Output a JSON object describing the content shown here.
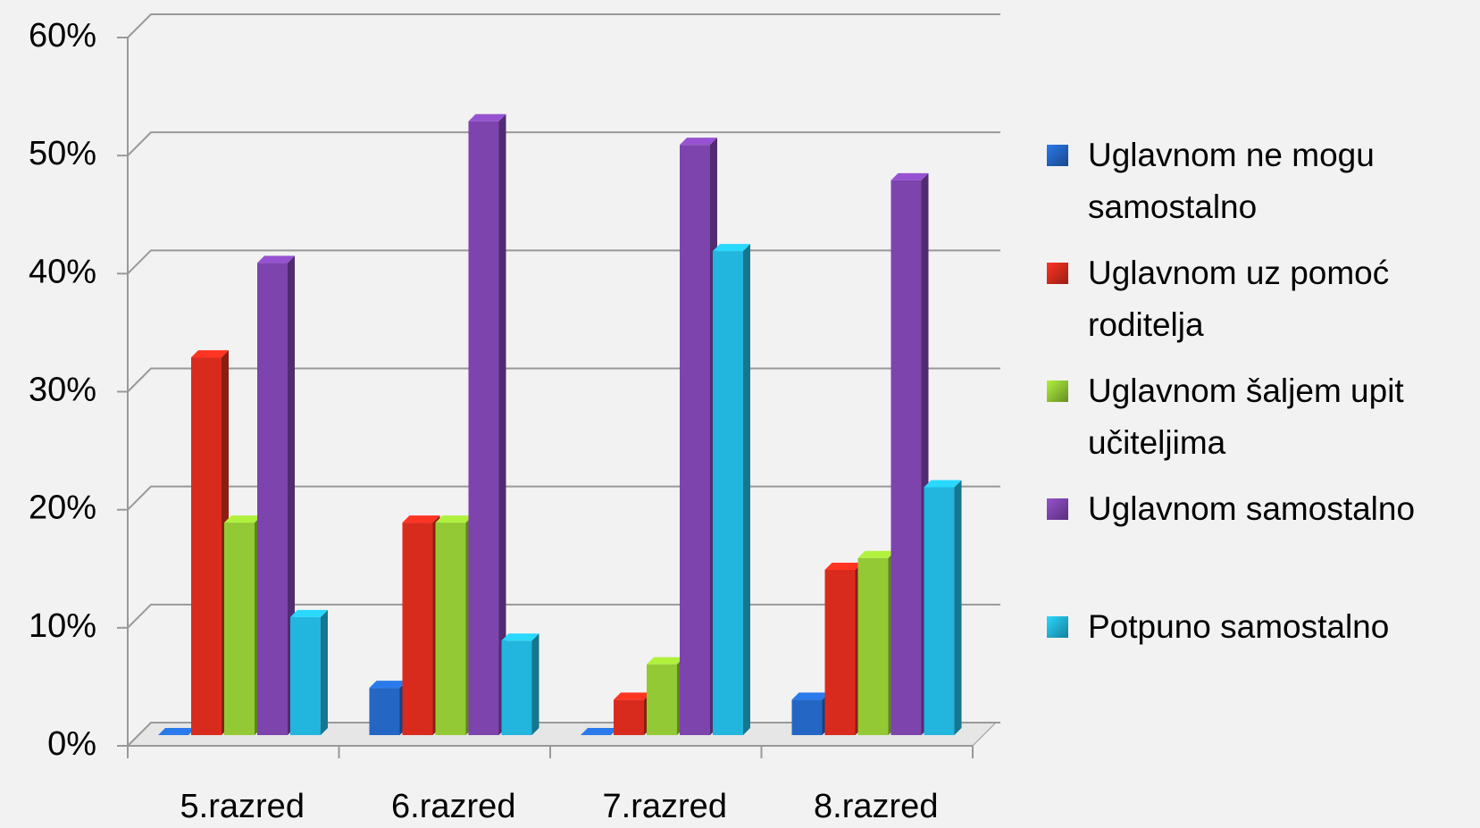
{
  "chart_data": {
    "type": "bar3d",
    "categories": [
      "5.razred",
      "6.razred",
      "7.razred",
      "8.razred"
    ],
    "series": [
      {
        "name": "Uglavnom ne mogu samostalno",
        "color": "#2366c4",
        "values": [
          0,
          4,
          0,
          3
        ]
      },
      {
        "name": "Uglavnom uz pomoć roditelja",
        "color": "#d92b1d",
        "values": [
          32,
          18,
          3,
          14
        ]
      },
      {
        "name": "Uglavnom šaljem upit učiteljima",
        "color": "#93c934",
        "values": [
          18,
          18,
          6,
          15
        ]
      },
      {
        "name": "Uglavnom samostalno",
        "color": "#7d44ad",
        "values": [
          40,
          52,
          50,
          47
        ]
      },
      {
        "name": "Potpuno samostalno",
        "color": "#22b5dd",
        "values": [
          10,
          8,
          41,
          21
        ]
      }
    ],
    "ylim": [
      0,
      60
    ],
    "yticks": [
      {
        "value": 0,
        "label": "0%"
      },
      {
        "value": 10,
        "label": "10%"
      },
      {
        "value": 20,
        "label": "20%"
      },
      {
        "value": 30,
        "label": "30%"
      },
      {
        "value": 40,
        "label": "40%"
      },
      {
        "value": 50,
        "label": "50%"
      },
      {
        "value": 60,
        "label": "60%"
      }
    ],
    "grid": true,
    "legend": "right"
  }
}
